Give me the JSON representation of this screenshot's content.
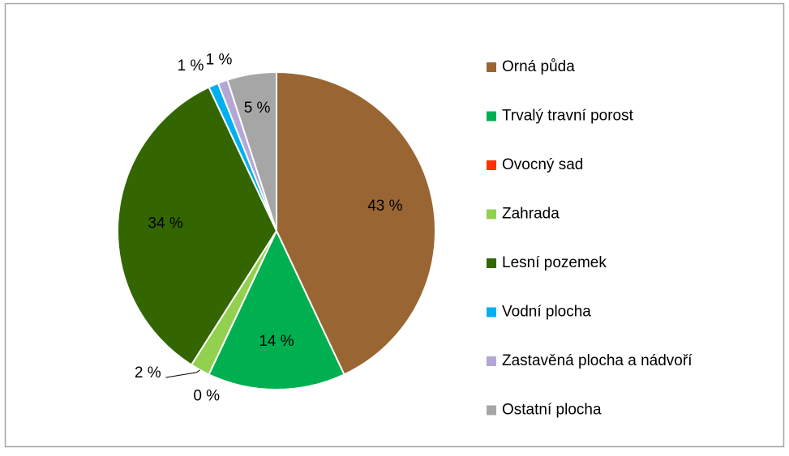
{
  "chart_data": {
    "type": "pie",
    "categories": [
      "Orná půda",
      "Trvalý travní porost",
      "Ovocný sad",
      "Zahrada",
      "Lesní pozemek",
      "Vodní plocha",
      "Zastavěná plocha a nádvoří",
      "Ostatní plocha"
    ],
    "values": [
      43,
      14,
      0,
      2,
      34,
      1,
      1,
      5
    ],
    "value_labels": [
      "43 %",
      "14 %",
      "0 %",
      "2 %",
      "34 %",
      "1 %",
      "1 %",
      "5 %"
    ],
    "colors": [
      "#996633",
      "#00b050",
      "#ff3300",
      "#92d050",
      "#336600",
      "#00b0f0",
      "#b4a7d6",
      "#a6a6a6"
    ],
    "legend": "right"
  }
}
